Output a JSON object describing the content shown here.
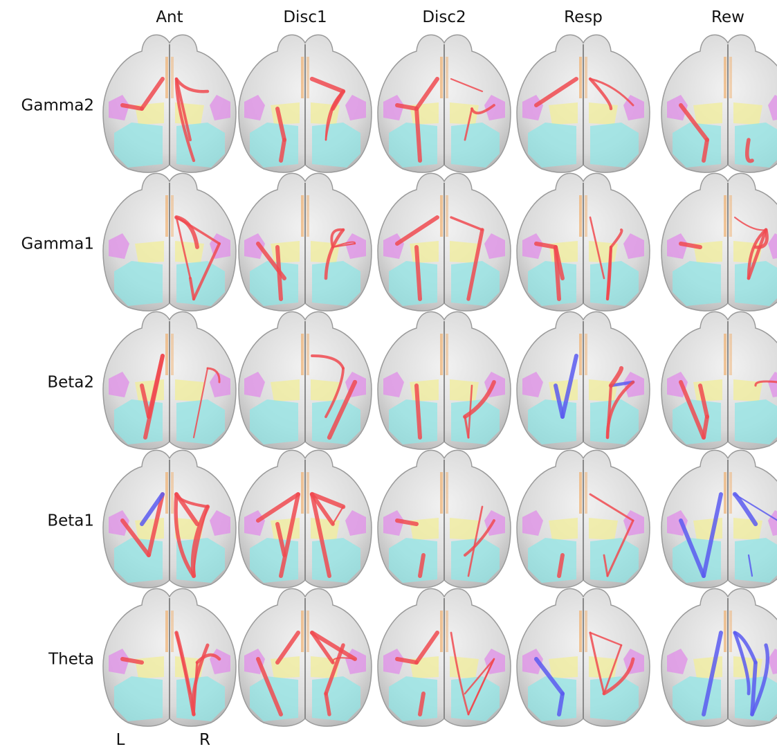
{
  "columns": [
    "Ant",
    "Disc1",
    "Disc2",
    "Resp",
    "Rew"
  ],
  "rows": [
    "Gamma2",
    "Gamma1",
    "Beta2",
    "Beta1",
    "Theta"
  ],
  "hemispheres": {
    "left": "L",
    "right": "R"
  },
  "colors": {
    "brain": "#d8d8d8",
    "brain_edge": "#9a9a9a",
    "region_magenta": "#e08ee8",
    "region_yellow": "#f2ee9a",
    "region_cyan": "#92e6e6",
    "region_orange": "#f0b070",
    "positive_edge": "#f04a50",
    "negative_edge": "#5a5af0"
  },
  "edge_legend": {
    "positive": "positive_edge",
    "negative": "negative_edge"
  }
}
